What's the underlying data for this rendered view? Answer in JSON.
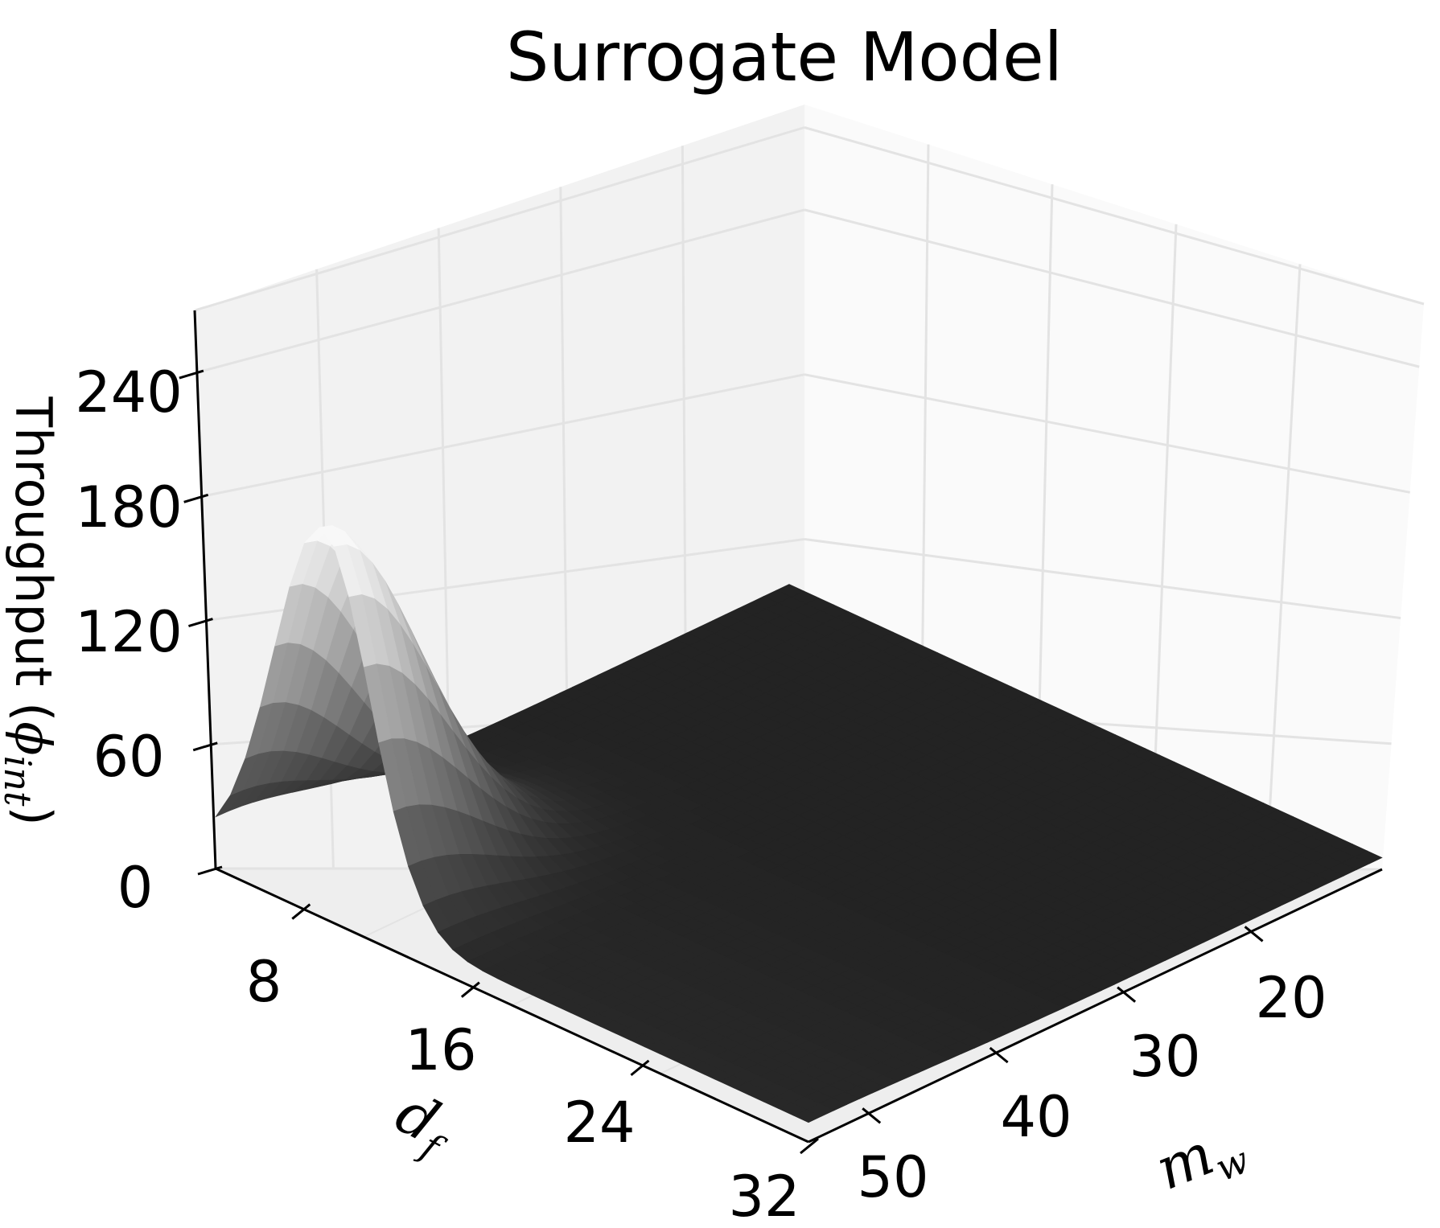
{
  "chart_data": {
    "type": "surface3d",
    "title": "Surrogate Model",
    "zlabel": "Throughput (ϕ_int)",
    "zlabel_main": "Throughput (",
    "zlabel_sym": "ϕ",
    "zlabel_sub": "int",
    "zlabel_close": ")",
    "xlabel": "d_f",
    "xlabel_main": "d",
    "xlabel_sub": "f",
    "ylabel": "m_w",
    "ylabel_main": "m",
    "ylabel_sub": "w",
    "x_ticks": [
      "8",
      "16",
      "24",
      "32"
    ],
    "y_ticks": [
      "20",
      "30",
      "40",
      "50"
    ],
    "z_ticks": [
      "0",
      "60",
      "120",
      "180",
      "240"
    ],
    "xlim": [
      4,
      32
    ],
    "ylim": [
      10,
      55
    ],
    "zlim": [
      0,
      270
    ],
    "colormap": "gray",
    "grid": true,
    "peak": {
      "d_f": 9,
      "m_w": 55,
      "throughput": 190
    }
  }
}
